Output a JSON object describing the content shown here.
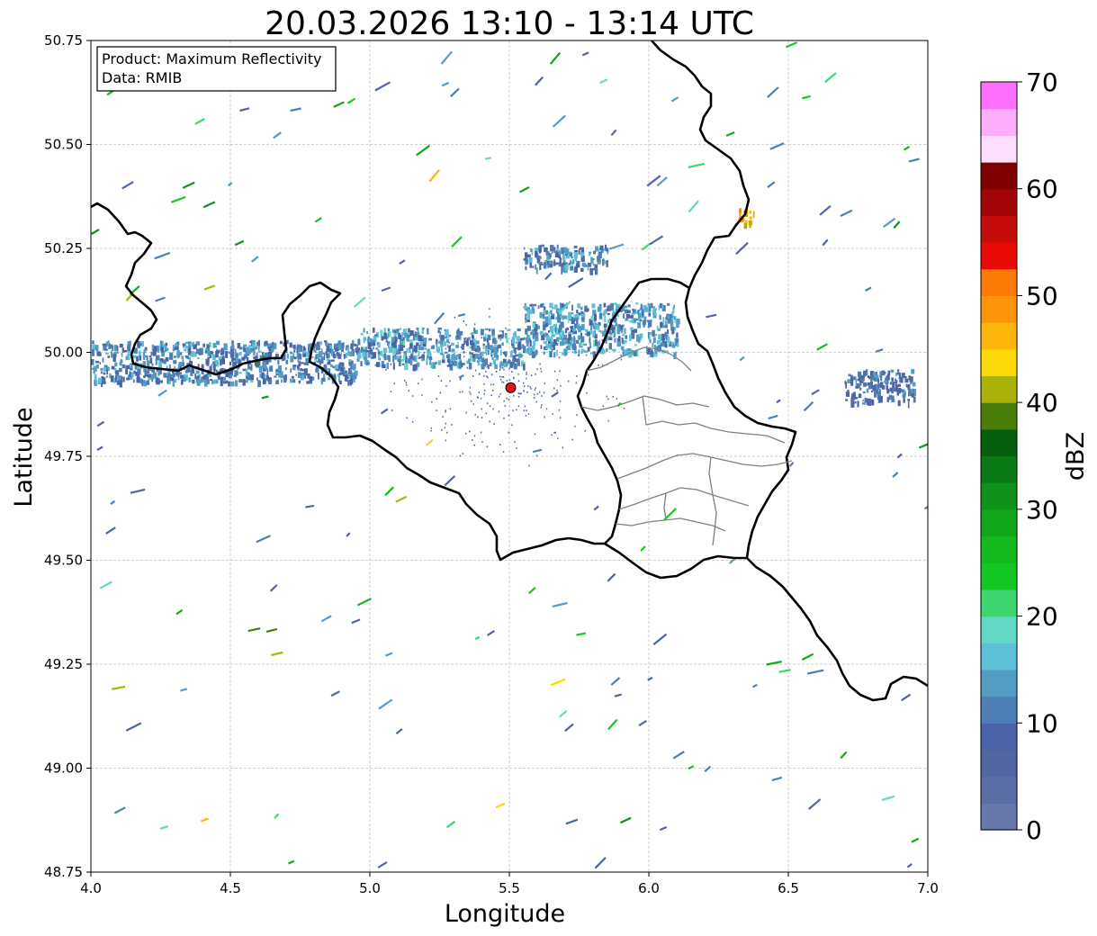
{
  "title": "20.03.2026 13:10 - 13:14 UTC",
  "info_box": {
    "product": "Product: Maximum Reflectivity",
    "data": "Data: RMIB"
  },
  "chart_data": {
    "type": "radar-map",
    "xlabel": "Longitude",
    "ylabel": "Latitude",
    "xlim": [
      4.0,
      7.0
    ],
    "ylim": [
      48.75,
      50.75
    ],
    "x_ticks": [
      "4.0",
      "4.5",
      "5.0",
      "5.5",
      "6.0",
      "6.5",
      "7.0"
    ],
    "y_ticks": [
      "48.75",
      "49.00",
      "49.25",
      "49.50",
      "49.75",
      "50.00",
      "50.25",
      "50.50",
      "50.75"
    ],
    "grid": true,
    "radar_site": {
      "lon": 5.505,
      "lat": 49.915,
      "color": "#e0141e"
    },
    "colorbar": {
      "label": "dBZ",
      "ticks": [
        "0",
        "10",
        "20",
        "30",
        "40",
        "50",
        "60",
        "70"
      ],
      "range": [
        0,
        70
      ],
      "step": 2.5,
      "colors": [
        "#6679aa",
        "#5b6fa6",
        "#5266a3",
        "#4b63a9",
        "#4c7fb5",
        "#539cc3",
        "#5dc0d6",
        "#62d8c6",
        "#3dd66e",
        "#14c823",
        "#14b91e",
        "#12a71a",
        "#0f9219",
        "#0a7b14",
        "#065f0f",
        "#4a7d0a",
        "#aab20a",
        "#fcd806",
        "#fcb508",
        "#fc9608",
        "#fc7a06",
        "#ea0a06",
        "#c60b0b",
        "#a20505",
        "#7e0000",
        "#fedefe",
        "#fcaefc",
        "#fc70fc"
      ]
    },
    "reflectivity_areas": [
      {
        "name": "band-west",
        "lon": [
          4.0,
          4.95
        ],
        "lat": [
          49.93,
          50.03
        ],
        "dbz": 10
      },
      {
        "name": "band-central",
        "lon": [
          4.95,
          5.55
        ],
        "lat": [
          49.97,
          50.06
        ],
        "dbz": 12
      },
      {
        "name": "band-east",
        "lon": [
          5.55,
          6.1
        ],
        "lat": [
          50.0,
          50.12
        ],
        "dbz": 12
      },
      {
        "name": "cluster-north",
        "lon": [
          5.55,
          5.85
        ],
        "lat": [
          50.2,
          50.26
        ],
        "dbz": 10
      },
      {
        "name": "cluster-far-east",
        "lon": [
          6.7,
          6.95
        ],
        "lat": [
          49.88,
          49.96
        ],
        "dbz": 8
      },
      {
        "name": "cell-ne",
        "lon": [
          6.32,
          6.38
        ],
        "lat": [
          50.31,
          50.35
        ],
        "dbz": 45
      }
    ],
    "borders": {
      "country_color": "#000000",
      "province_color": "#808080"
    }
  }
}
